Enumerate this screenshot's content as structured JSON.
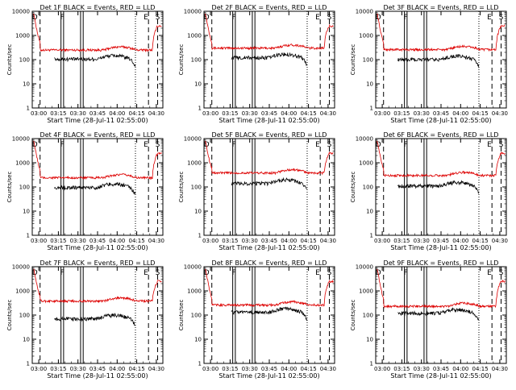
{
  "chart_data": {
    "type": "line",
    "common": {
      "xlabel": "Start Time (28-Jul-11 02:55:00)",
      "ylabel": "Counts/sec",
      "yscale": "log",
      "ylim": [
        1,
        10000
      ],
      "xlim": [
        "02:55",
        "04:35"
      ],
      "x_ticks": [
        "03:00",
        "03:15",
        "03:30",
        "03:45",
        "04:00",
        "04:15",
        "04:30"
      ],
      "y_ticks": [
        "1",
        "10",
        "100",
        "1000",
        "10000"
      ],
      "series_colors": {
        "events": "#000000",
        "lld": "#dd0000"
      },
      "markers": {
        "solid": [
          "03:17",
          "03:19",
          "03:32",
          "03:34"
        ],
        "dashed": [
          "03:01",
          "04:24",
          "04:31"
        ],
        "dotted": [
          "04:14"
        ]
      },
      "marker_labels": [
        {
          "text": "D",
          "x": "02:57"
        },
        {
          "text": "F",
          "x": "03:18"
        },
        {
          "text": "E",
          "x": "04:22"
        },
        {
          "text": "S",
          "x": "04:31"
        }
      ]
    },
    "panels": [
      {
        "title": "Det 1F BLACK = Events, RED = LLD",
        "lld_level": 250,
        "events_level": 105,
        "events_start": "03:12"
      },
      {
        "title": "Det 2F BLACK = Events, RED = LLD",
        "lld_level": 300,
        "events_level": 120,
        "events_start": "03:16"
      },
      {
        "title": "Det 3F BLACK = Events, RED = LLD",
        "lld_level": 260,
        "events_level": 100,
        "events_start": "03:12"
      },
      {
        "title": "Det 4F BLACK = Events, RED = LLD",
        "lld_level": 240,
        "events_level": 95,
        "events_start": "03:12"
      },
      {
        "title": "Det 5F BLACK = Events, RED = LLD",
        "lld_level": 380,
        "events_level": 140,
        "events_start": "03:16"
      },
      {
        "title": "Det 6F BLACK = Events, RED = LLD",
        "lld_level": 300,
        "events_level": 110,
        "events_start": "03:12"
      },
      {
        "title": "Det 7F BLACK = Events, RED = LLD",
        "lld_level": 380,
        "events_level": 70,
        "events_start": "03:12"
      },
      {
        "title": "Det 8F BLACK = Events, RED = LLD",
        "lld_level": 260,
        "events_level": 130,
        "events_start": "03:16"
      },
      {
        "title": "Det 9F BLACK = Events, RED = LLD",
        "lld_level": 230,
        "events_level": 120,
        "events_start": "03:12"
      }
    ]
  }
}
